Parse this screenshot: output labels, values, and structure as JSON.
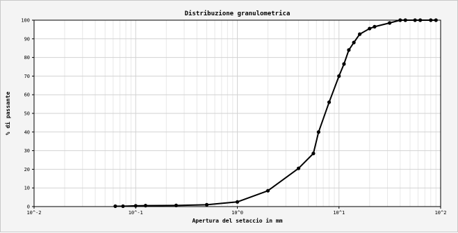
{
  "chart_data": {
    "type": "line",
    "title": "Distribuzione granulometrica",
    "xlabel": "Apertura del setaccio in mm",
    "ylabel": "% di passante",
    "x_scale": "log",
    "xlim": [
      0.01,
      100
    ],
    "ylim": [
      0,
      100
    ],
    "grid": true,
    "x_tick_labels": [
      "10^-2",
      "10^-1",
      "10^0",
      "10^1",
      "10^2"
    ],
    "y_tick_labels": [
      "0",
      "10",
      "20",
      "30",
      "40",
      "50",
      "60",
      "70",
      "80",
      "90",
      "100"
    ],
    "colors": {
      "line": "#000000",
      "grid_major": "#d2d2d2",
      "grid_minor": "#e8e8e8",
      "plot_bg": "#ffffff",
      "frame_bg": "#f4f4f4"
    },
    "series": [
      {
        "x": [
          0.063,
          0.075,
          0.1,
          0.125,
          0.25,
          0.5,
          1,
          2,
          4,
          5.6,
          6.3,
          8,
          10,
          11.2,
          12.5,
          14,
          16,
          20,
          22.4,
          31.5,
          40,
          45,
          56,
          63,
          80,
          90
        ],
        "y": [
          0.2,
          0.2,
          0.4,
          0.5,
          0.6,
          1.0,
          2.5,
          8.5,
          20.5,
          28.5,
          40,
          56,
          70,
          76.5,
          84,
          88,
          92.5,
          95.5,
          96.5,
          98.5,
          100,
          100,
          100,
          100,
          100,
          100
        ]
      }
    ]
  }
}
